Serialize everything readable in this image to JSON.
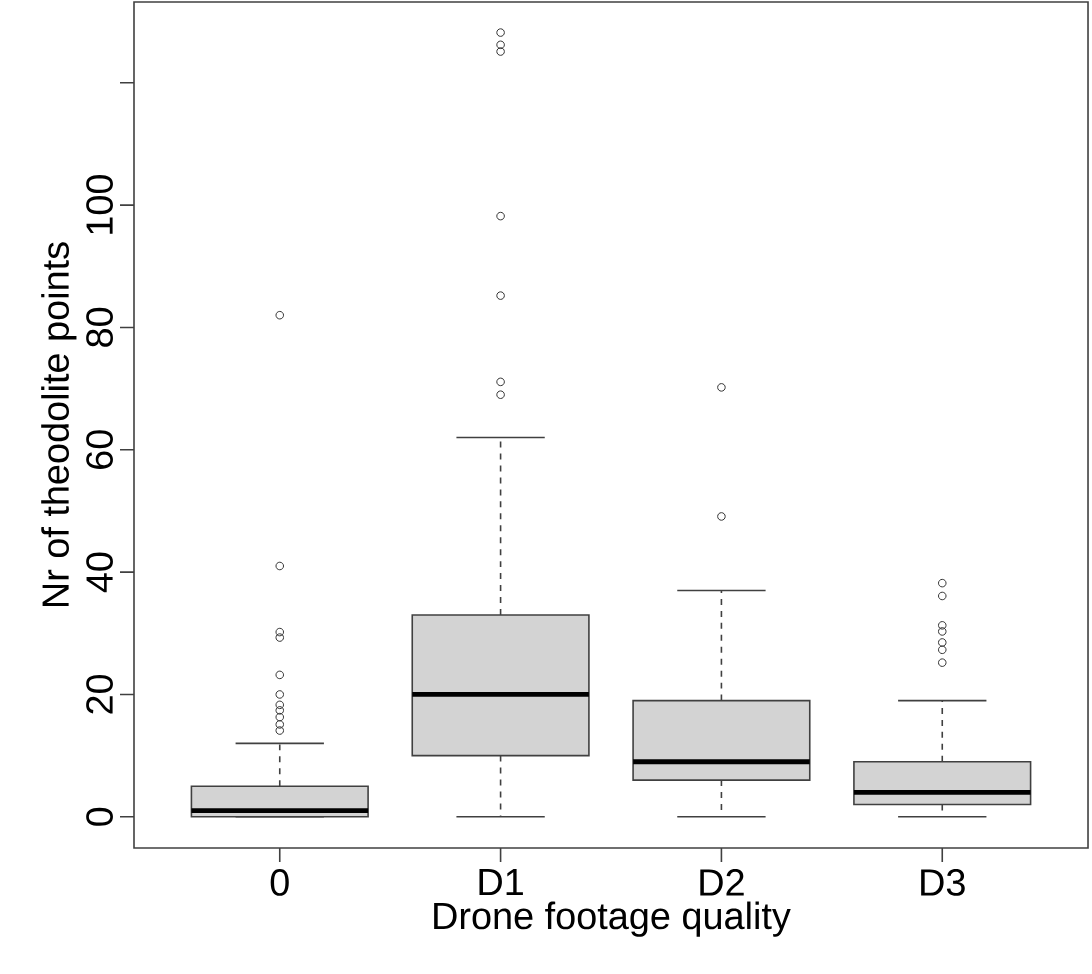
{
  "chart_data": {
    "type": "box",
    "xlabel": "Drone footage quality",
    "ylabel": "Nr of theodolite points",
    "categories": [
      "0",
      "D1",
      "D2",
      "D3"
    ],
    "ylim": [
      -5.1,
      133.2
    ],
    "yticks": [
      0,
      20,
      40,
      60,
      80,
      100,
      {
        "value": 120,
        "label": null
      }
    ],
    "color": "#d3d3d3",
    "marker": "circle",
    "boxes": [
      {
        "low": 0,
        "q1": 0,
        "median": 1,
        "q3": 5,
        "high": 12,
        "outliers": [
          14.1,
          15.1,
          16.3,
          17.4,
          18.3,
          20,
          23.2,
          29.3,
          30.2,
          41,
          82
        ]
      },
      {
        "low": 0,
        "q1": 10,
        "median": 20,
        "q3": 33,
        "high": 62,
        "outliers": [
          69,
          71.1,
          85.2,
          98.2,
          125.1,
          126.2,
          128.2
        ]
      },
      {
        "low": 0,
        "q1": 6,
        "median": 9,
        "q3": 19,
        "high": 37,
        "outliers": [
          49.1,
          70.2
        ]
      },
      {
        "low": 0,
        "q1": 2,
        "median": 4,
        "q3": 9,
        "high": 19,
        "outliers": [
          25.2,
          27.3,
          28.5,
          30.3,
          31.3,
          36.1,
          38.2
        ]
      }
    ]
  }
}
